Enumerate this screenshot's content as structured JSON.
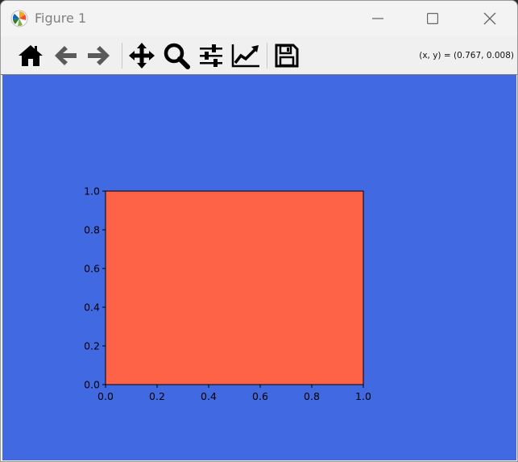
{
  "window": {
    "title": "Figure 1"
  },
  "toolbar": {
    "buttons": [
      {
        "name": "home-icon"
      },
      {
        "name": "back-icon"
      },
      {
        "name": "forward-icon"
      },
      {
        "name": "pan-icon"
      },
      {
        "name": "zoom-icon"
      },
      {
        "name": "configure-subplots-icon"
      },
      {
        "name": "edit-axes-icon"
      },
      {
        "name": "save-icon"
      }
    ],
    "coords": "(x, y) = (0.767, 0.008)"
  },
  "colors": {
    "figure_bg": "#4169e1",
    "axes_bg": "#ff6347",
    "toolbar_icon": "#000000",
    "disabled_icon": "#5a5a5a"
  },
  "chart_data": {
    "type": "line",
    "title": "",
    "xlabel": "",
    "ylabel": "",
    "xlim": [
      0.0,
      1.0
    ],
    "ylim": [
      0.0,
      1.0
    ],
    "x_ticks": [
      "0.0",
      "0.2",
      "0.4",
      "0.6",
      "0.8",
      "1.0"
    ],
    "y_ticks": [
      "0.0",
      "0.2",
      "0.4",
      "0.6",
      "0.8",
      "1.0"
    ],
    "series": [],
    "grid": false
  }
}
